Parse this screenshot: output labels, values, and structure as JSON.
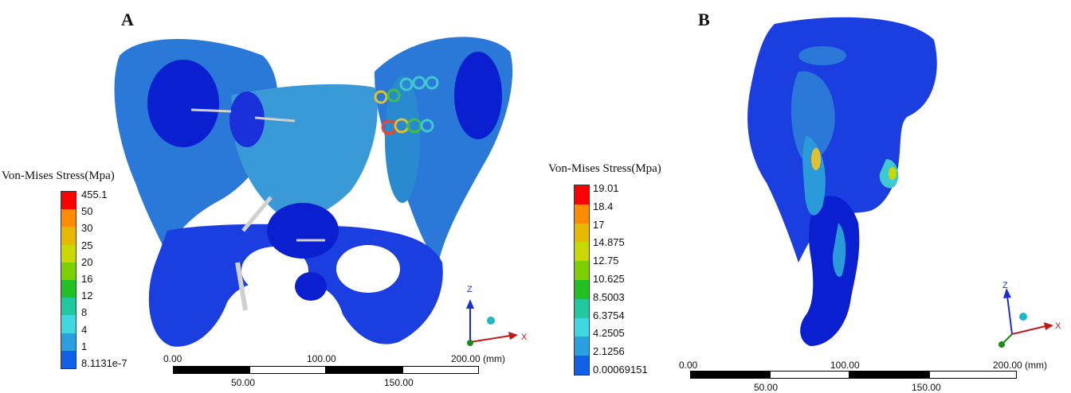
{
  "panel_a": {
    "label": "A",
    "legend_title": "Von-Mises Stress(Mpa)",
    "legend_values": [
      "455.1",
      "50",
      "30",
      "25",
      "20",
      "16",
      "12",
      "8",
      "4",
      "1",
      "8.1131e-7"
    ],
    "scale_ticks_top": [
      "0.00",
      "100.00",
      "200.00 (mm)"
    ],
    "scale_ticks_bottom": [
      "50.00",
      "150.00"
    ],
    "axis_labels": {
      "z": "Z",
      "x": "X"
    }
  },
  "panel_b": {
    "label": "B",
    "legend_title": "Von-Mises Stress(Mpa)",
    "legend_values": [
      "19.01",
      "18.4",
      "17",
      "14.875",
      "12.75",
      "10.625",
      "8.5003",
      "6.3754",
      "4.2505",
      "2.1256",
      "0.00069151"
    ],
    "scale_ticks_top": [
      "0.00",
      "100.00",
      "200.00 (mm)"
    ],
    "scale_ticks_bottom": [
      "50.00",
      "150.00"
    ],
    "axis_labels": {
      "z": "Z",
      "x": "X"
    }
  },
  "colormap": [
    "#ff0000",
    "#ff8c00",
    "#e6b800",
    "#c8d800",
    "#7cd000",
    "#22c022",
    "#20c8a0",
    "#40d8e0",
    "#2aa0e0",
    "#1060e8",
    "#0000e6"
  ],
  "model_colors": {
    "base": "#1a2ed8",
    "mid": "#2a7ad8",
    "light": "#3aa0d8",
    "screw": "#c8c8c8"
  }
}
